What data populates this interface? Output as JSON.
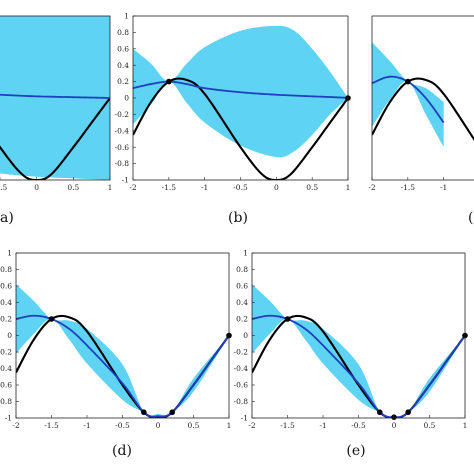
{
  "figure": {
    "colors": {
      "band": "#5fd3f3",
      "mean": "#1f3fbf",
      "truth": "#000000",
      "frame": "#222222"
    }
  },
  "chart_data": [
    {
      "type": "line",
      "panel_label": "(a)",
      "caption_visible": "a)",
      "xlim": [
        -2,
        1
      ],
      "ylim": [
        -1,
        1
      ],
      "xticks_visible": [
        "-0.5",
        "0",
        "0.5",
        "1"
      ],
      "yticks": [],
      "observations": [],
      "mean": {
        "x": [
          -2,
          -1.5,
          -1,
          -0.5,
          0,
          0.5,
          1
        ],
        "y": [
          0.13,
          0.1,
          0.07,
          0.04,
          0.02,
          0.01,
          0.0
        ]
      },
      "band_upper": {
        "x": [
          -2,
          -1.5,
          -1,
          -0.5,
          0,
          0.5,
          1
        ],
        "y": [
          0.9,
          0.96,
          0.99,
          1.0,
          1.0,
          1.0,
          1.0
        ]
      },
      "band_lower": {
        "x": [
          -2,
          -1.5,
          -1,
          -0.5,
          0,
          0.5,
          1
        ],
        "y": [
          -0.6,
          -0.75,
          -0.85,
          -0.92,
          -0.96,
          -0.98,
          -1.0
        ]
      }
    },
    {
      "type": "line",
      "panel_label": "(b)",
      "caption_visible": "(b)",
      "xlim": [
        -2,
        1
      ],
      "ylim": [
        -1,
        1
      ],
      "xticks_visible": [
        "-2",
        "-1.5",
        "-1",
        "-0.5",
        "0",
        "0.5",
        "1"
      ],
      "yticks": [
        "1",
        "0.8",
        "0.6",
        "0.4",
        "0.2",
        "0",
        "-0.2",
        "-0.4",
        "-0.6",
        "-0.8",
        "-1"
      ],
      "observations": [
        {
          "x": -1.5,
          "y": 0.2
        },
        {
          "x": 1,
          "y": 0
        }
      ],
      "mean": {
        "x": [
          -2,
          -1.75,
          -1.5,
          -1.25,
          -1,
          -0.5,
          0,
          0.5,
          0.8,
          1
        ],
        "y": [
          0.12,
          0.17,
          0.2,
          0.17,
          0.12,
          0.07,
          0.04,
          0.02,
          0.01,
          0.0
        ]
      },
      "band_upper": {
        "x": [
          -2,
          -1.75,
          -1.5,
          -1.25,
          -1,
          -0.5,
          0,
          0.25,
          0.5,
          0.75,
          1
        ],
        "y": [
          0.6,
          0.42,
          0.2,
          0.42,
          0.62,
          0.82,
          0.88,
          0.82,
          0.6,
          0.32,
          0.0
        ]
      },
      "band_lower": {
        "x": [
          -2,
          -1.75,
          -1.5,
          -1.25,
          -1,
          -0.5,
          0,
          0.25,
          0.5,
          0.75,
          1
        ],
        "y": [
          -0.32,
          -0.08,
          0.2,
          -0.06,
          -0.3,
          -0.58,
          -0.72,
          -0.65,
          -0.45,
          -0.2,
          0.0
        ]
      }
    },
    {
      "type": "line",
      "panel_label": "(c)",
      "caption_visible": "(c",
      "xlim": [
        -2,
        1
      ],
      "ylim": [
        -1,
        1
      ],
      "xticks_visible": [
        "-2",
        "-1.5",
        "-1"
      ],
      "yticks": [],
      "observations": [
        {
          "x": -1.5,
          "y": 0.2
        }
      ],
      "mean": {
        "x": [
          -2,
          -1.75,
          -1.5,
          -1.25,
          -1
        ],
        "y": [
          0.18,
          0.26,
          0.2,
          0.0,
          -0.3
        ]
      },
      "band_upper": {
        "x": [
          -2,
          -1.75,
          -1.5,
          -1.25,
          -1
        ],
        "y": [
          0.68,
          0.45,
          0.2,
          0.12,
          -0.05
        ]
      },
      "band_lower": {
        "x": [
          -2,
          -1.75,
          -1.5,
          -1.25,
          -1
        ],
        "y": [
          -0.35,
          -0.02,
          0.2,
          -0.2,
          -0.6
        ]
      }
    },
    {
      "type": "line",
      "panel_label": "(d)",
      "caption_visible": "(d)",
      "xlim": [
        -2,
        1
      ],
      "ylim": [
        -1,
        1
      ],
      "xticks_visible": [
        "-2",
        "-1.5",
        "-1",
        "-0.5",
        "0",
        "0.5",
        "1"
      ],
      "yticks": [
        "1",
        "0.8",
        "0.6",
        "0.4",
        "0.2",
        "0",
        "-0.2",
        "-0.4",
        "-0.6",
        "-0.8",
        "-1"
      ],
      "observations": [
        {
          "x": -1.5,
          "y": 0.2
        },
        {
          "x": -0.2,
          "y": -0.93
        },
        {
          "x": 0.2,
          "y": -0.93
        },
        {
          "x": 1,
          "y": 0
        }
      ],
      "mean": {
        "x": [
          -2,
          -1.75,
          -1.5,
          -1.25,
          -1,
          -0.5,
          -0.2,
          0,
          0.2,
          0.5,
          1
        ],
        "y": [
          0.2,
          0.24,
          0.2,
          0.08,
          -0.12,
          -0.58,
          -0.93,
          -0.98,
          -0.93,
          -0.6,
          0.0
        ]
      },
      "band_upper": {
        "x": [
          -2,
          -1.75,
          -1.5,
          -1.25,
          -1,
          -0.5,
          -0.2,
          0,
          0.2,
          0.5,
          1
        ],
        "y": [
          0.62,
          0.42,
          0.2,
          0.18,
          0.08,
          -0.35,
          -0.93,
          -0.95,
          -0.93,
          -0.52,
          0.0
        ]
      },
      "band_lower": {
        "x": [
          -2,
          -1.75,
          -1.5,
          -1.25,
          -1,
          -0.5,
          -0.2,
          0,
          0.2,
          0.5,
          1
        ],
        "y": [
          -0.22,
          0.02,
          0.2,
          -0.05,
          -0.34,
          -0.78,
          -0.93,
          -1.0,
          -0.93,
          -0.68,
          0.0
        ]
      }
    },
    {
      "type": "line",
      "panel_label": "(e)",
      "caption_visible": "(e)",
      "xlim": [
        -2,
        1
      ],
      "ylim": [
        -1,
        1
      ],
      "xticks_visible": [
        "-2",
        "-1.5",
        "-1",
        "-0.5",
        "0",
        "0.5",
        "1"
      ],
      "yticks": [
        "1",
        "0.8",
        "0.6",
        "0.4",
        "0.2",
        "0",
        "-0.2",
        "-0.4",
        "-0.6",
        "-0.8",
        "-1"
      ],
      "observations": [
        {
          "x": -1.5,
          "y": 0.2
        },
        {
          "x": -0.2,
          "y": -0.93
        },
        {
          "x": 0,
          "y": -0.99
        },
        {
          "x": 0.2,
          "y": -0.93
        },
        {
          "x": 1,
          "y": 0
        }
      ],
      "mean": {
        "x": [
          -2,
          -1.75,
          -1.5,
          -1.25,
          -1,
          -0.5,
          -0.2,
          0,
          0.2,
          0.5,
          1
        ],
        "y": [
          0.2,
          0.24,
          0.2,
          0.08,
          -0.12,
          -0.58,
          -0.93,
          -0.99,
          -0.93,
          -0.6,
          0.0
        ]
      },
      "band_upper": {
        "x": [
          -2,
          -1.75,
          -1.5,
          -1.25,
          -1,
          -0.5,
          -0.2,
          0,
          0.2,
          0.5,
          1
        ],
        "y": [
          0.62,
          0.42,
          0.2,
          0.18,
          0.08,
          -0.35,
          -0.93,
          -0.99,
          -0.93,
          -0.52,
          0.0
        ]
      },
      "band_lower": {
        "x": [
          -2,
          -1.75,
          -1.5,
          -1.25,
          -1,
          -0.5,
          -0.2,
          0,
          0.2,
          0.5,
          1
        ],
        "y": [
          -0.22,
          0.02,
          0.2,
          -0.05,
          -0.34,
          -0.78,
          -0.93,
          -0.99,
          -0.93,
          -0.68,
          0.0
        ]
      }
    }
  ]
}
